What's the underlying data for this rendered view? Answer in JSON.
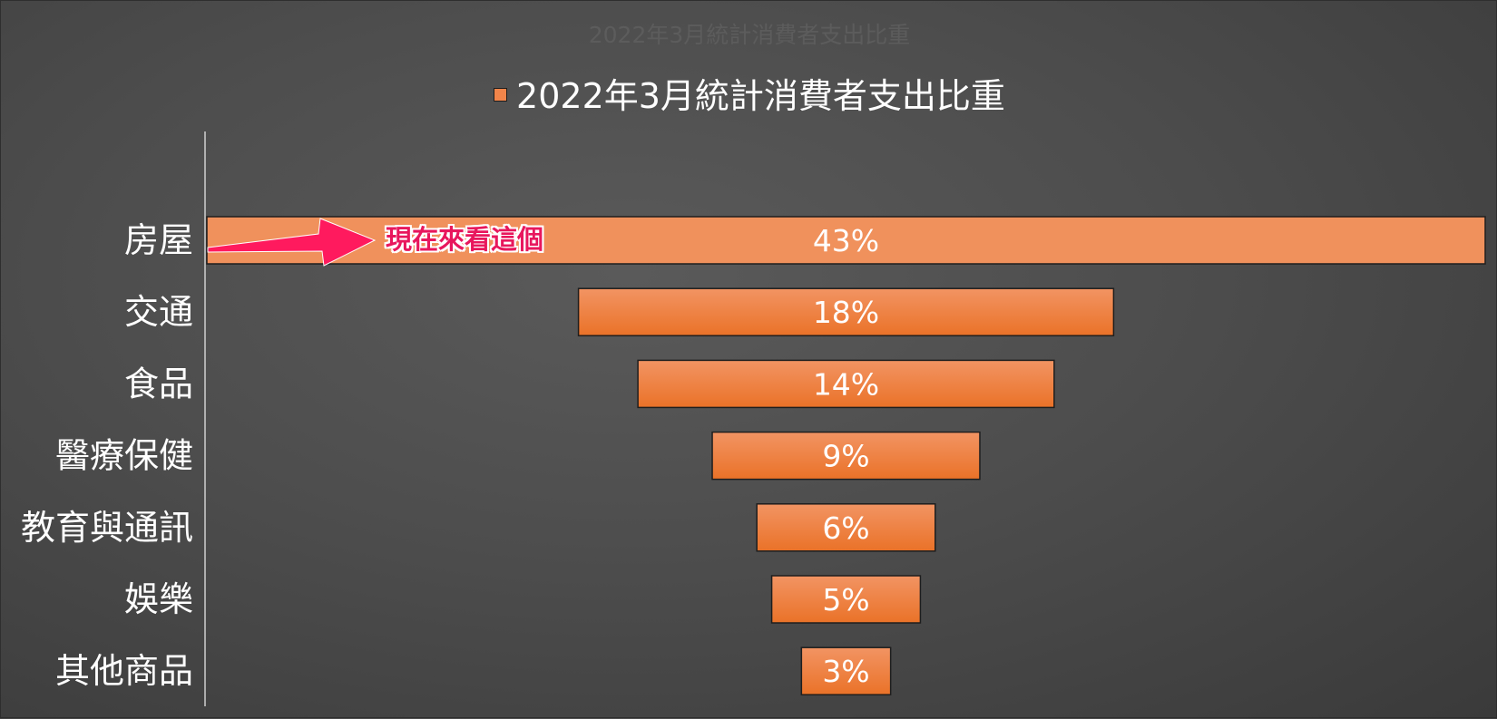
{
  "chart_data": {
    "type": "bar",
    "orientation": "horizontal",
    "layout": "funnel",
    "title": "2022年3月統計消費者支出比重",
    "categories": [
      "房屋",
      "交通",
      "食品",
      "醫療保健",
      "教育與通訊",
      "娛樂",
      "其他商品"
    ],
    "series": [
      {
        "name": "2022年3月統計消費者支出比重",
        "values": [
          43,
          18,
          14,
          9,
          6,
          5,
          3
        ],
        "labels": [
          "43%",
          "18%",
          "14%",
          "9%",
          "6%",
          "5%",
          "3%"
        ]
      }
    ],
    "unit": "%",
    "legend": "top-center",
    "grid": false,
    "annotation": "現在來看這個",
    "colors": {
      "bar": "#f2854a",
      "bar_border": "#1e1e1e",
      "text": "#ffffff",
      "annotation": "#e8175d",
      "axis": "#d0d0d0"
    }
  }
}
